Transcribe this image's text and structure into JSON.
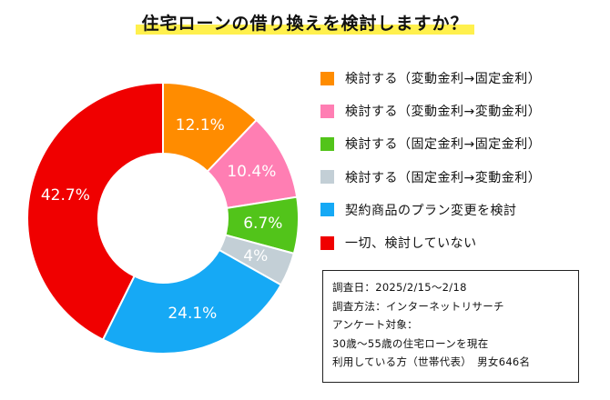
{
  "chart_data": {
    "type": "pie",
    "title": "住宅ローンの借り換えを検討しますか？",
    "slices": [
      {
        "label": "検討する（変動金利→固定金利）",
        "value": 12.1,
        "value_label": "12.1%",
        "color": "#ff8c00"
      },
      {
        "label": "検討する（変動金利→変動金利）",
        "value": 10.4,
        "value_label": "10.4%",
        "color": "#ff7eb3"
      },
      {
        "label": "検討する（固定金利→固定金利）",
        "value": 6.7,
        "value_label": "6.7%",
        "color": "#52c41a"
      },
      {
        "label": "検討する（固定金利→変動金利）",
        "value": 4,
        "value_label": "4%",
        "color": "#c3cfd6"
      },
      {
        "label": "契約商品のプラン変更を検討",
        "value": 24.1,
        "value_label": "24.1%",
        "color": "#16a9f5"
      },
      {
        "label": "一切、検討していない",
        "value": 42.7,
        "value_label": "42.7%",
        "color": "#f00000"
      }
    ],
    "legend_position": "right",
    "donut": true
  },
  "notes": [
    "調査日：2025/2/15〜2/18",
    "調査方法：インターネットリサーチ",
    "アンケート対象：",
    "30歳〜55歳の住宅ローンを現在",
    "利用している方（世帯代表）　男女646名"
  ]
}
